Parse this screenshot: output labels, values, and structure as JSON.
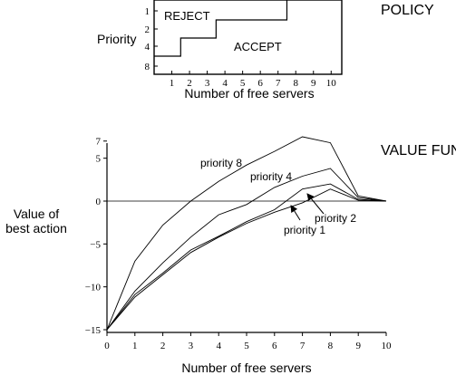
{
  "chart_data": [
    {
      "type": "step",
      "title": "POLICY",
      "ylabel": "Priority",
      "xlabel": "Number of free servers",
      "x_ticks": [
        1,
        2,
        3,
        4,
        5,
        6,
        7,
        8,
        9,
        10
      ],
      "y_ticks": [
        1,
        2,
        4,
        8
      ],
      "xlim": [
        0,
        10.6
      ],
      "region_labels": [
        "REJECT",
        "ACCEPT"
      ],
      "accept_threshold": [
        {
          "priority": 1,
          "min_free_servers": 7.5
        },
        {
          "priority": 2,
          "min_free_servers": 3.5
        },
        {
          "priority": 4,
          "min_free_servers": 1.5
        },
        {
          "priority": 8,
          "min_free_servers": 0
        }
      ]
    },
    {
      "type": "line",
      "title": "VALUE FUNCTION",
      "ylabel": "Value of best action",
      "ylabel_lines": [
        "Value of",
        "best action"
      ],
      "xlabel": "Number of free servers",
      "x": [
        0,
        1,
        2,
        3,
        4,
        5,
        6,
        7,
        8,
        9,
        10
      ],
      "x_ticks": [
        0,
        1,
        2,
        3,
        4,
        5,
        6,
        7,
        8,
        9,
        10
      ],
      "y_ticks": [
        -15,
        -10,
        -5,
        0,
        5,
        7
      ],
      "y_tick_labels": [
        "−15",
        "−10",
        "−5",
        "0",
        "5",
        "7"
      ],
      "xlim": [
        0,
        10
      ],
      "ylim": [
        -15.5,
        7.5
      ],
      "zero_line": true,
      "series": [
        {
          "name": "priority 8",
          "values": [
            -15,
            -7,
            -2.8,
            0,
            2.3,
            4.2,
            5.8,
            7.5,
            6.8,
            0.6,
            0
          ]
        },
        {
          "name": "priority 4",
          "values": [
            -15,
            -10.5,
            -7.2,
            -4.2,
            -1.6,
            -0.4,
            1.6,
            2.9,
            3.8,
            0.4,
            0
          ]
        },
        {
          "name": "priority 2",
          "values": [
            -15,
            -10.9,
            -8.4,
            -5.7,
            -4.1,
            -2.4,
            -1,
            1.4,
            2,
            0.2,
            0
          ]
        },
        {
          "name": "priority 1",
          "values": [
            -15,
            -11.2,
            -8.6,
            -6,
            -4.2,
            -2.6,
            -1.3,
            -0.2,
            1.4,
            0.1,
            0
          ]
        }
      ],
      "annotations": [
        {
          "text": "priority 8",
          "series": "priority 8"
        },
        {
          "text": "priority 4",
          "series": "priority 4"
        },
        {
          "text": "priority 2",
          "series": "priority 2",
          "arrow": true
        },
        {
          "text": "priority 1",
          "series": "priority 1",
          "arrow": true
        }
      ]
    }
  ]
}
